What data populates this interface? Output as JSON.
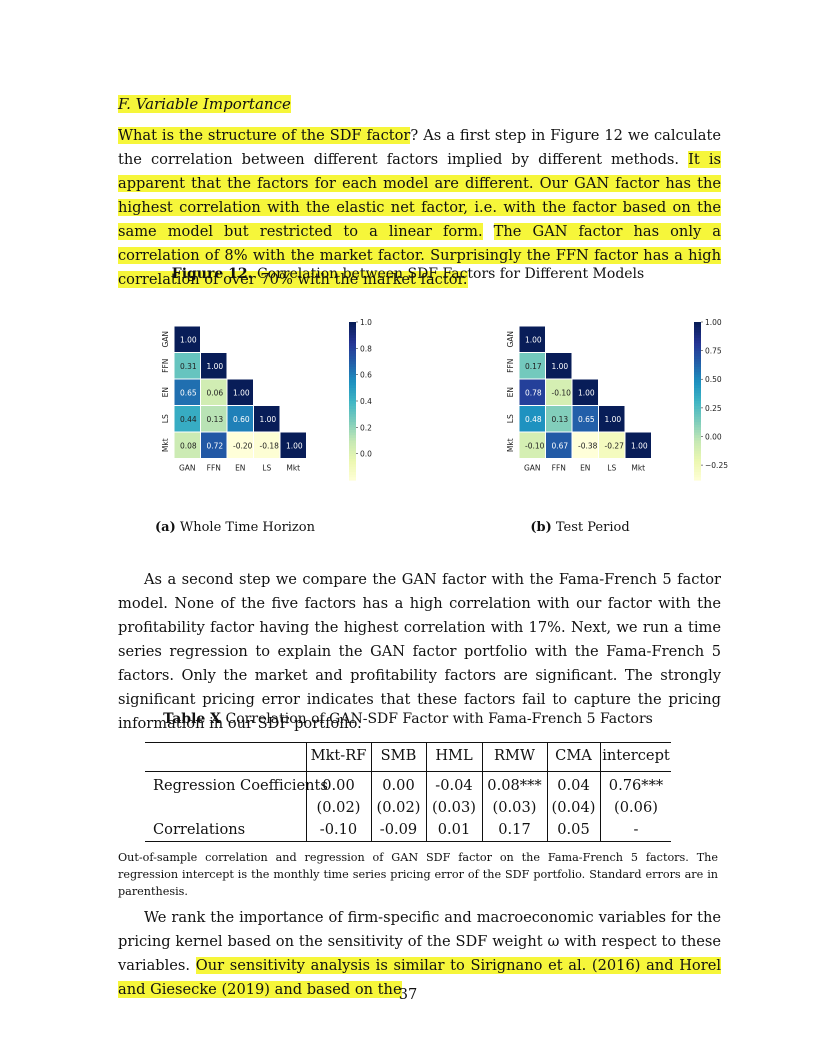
{
  "section": {
    "title": "F.   Variable Importance"
  },
  "para1": {
    "s1_hl": "What is the structure of the SDF factor",
    "s1_rest": "? As a first step in Figure 12 we calculate the correlation between different factors implied by different methods. ",
    "s2_hl": "It is apparent that the factors for each model are different. Our GAN factor has the highest correlation with the elastic net factor, i.e. with the factor based on the same model but restricted to a linear form.",
    "s3_hl": "The GAN factor has only a correlation of 8% with the market factor. Surprisingly the FFN factor has a high correlation of over 70% with the market factor."
  },
  "figure": {
    "label": "Figure 12.",
    "caption": "Correlation between SDF Factors for Different Models",
    "panel_a_label": "(a)",
    "panel_a_caption": "Whole Time Horizon",
    "panel_b_label": "(b)",
    "panel_b_caption": "Test Period"
  },
  "chart_data": [
    {
      "type": "heatmap",
      "title": "Whole Time Horizon",
      "labels": [
        "GAN",
        "FFN",
        "EN",
        "LS",
        "Mkt"
      ],
      "matrix": [
        [
          "1.00"
        ],
        [
          "0.31",
          "1.00"
        ],
        [
          "0.65",
          "0.06",
          "1.00"
        ],
        [
          "0.44",
          "0.13",
          "0.60",
          "1.00"
        ],
        [
          "0.08",
          "0.72",
          "-0.20",
          "-0.18",
          "1.00"
        ]
      ],
      "vmin": -0.2,
      "vmax": 1.0,
      "colorbar_ticks": [
        "0.0",
        "0.2",
        "0.4",
        "0.6",
        "0.8",
        "1.0"
      ],
      "colorbar_values": [
        0.0,
        0.2,
        0.4,
        0.6,
        0.8,
        1.0
      ]
    },
    {
      "type": "heatmap",
      "title": "Test Period",
      "labels": [
        "GAN",
        "FFN",
        "EN",
        "LS",
        "Mkt"
      ],
      "matrix": [
        [
          "1.00"
        ],
        [
          "0.17",
          "1.00"
        ],
        [
          "0.78",
          "-0.10",
          "1.00"
        ],
        [
          "0.48",
          "0.13",
          "0.65",
          "1.00"
        ],
        [
          "-0.10",
          "0.67",
          "-0.38",
          "-0.27",
          "1.00"
        ]
      ],
      "vmin": -0.38,
      "vmax": 1.0,
      "colorbar_ticks": [
        "−0.25",
        "0.00",
        "0.25",
        "0.50",
        "0.75",
        "1.00"
      ],
      "colorbar_values": [
        -0.25,
        0.0,
        0.25,
        0.5,
        0.75,
        1.0
      ]
    }
  ],
  "para2": "As a second step we compare the GAN factor with the Fama-French 5 factor model. None of the five factors has a high correlation with our factor with the profitability factor having the highest correlation with 17%. Next, we run a time series regression to explain the GAN factor portfolio with the Fama-French 5 factors. Only the market and profitability factors are significant. The strongly significant pricing error indicates that these factors fail to capture the pricing information in our SDF portfolio.",
  "table": {
    "label": "Table X",
    "caption": "Correlation of GAN-SDF Factor with Fama-French 5 Factors",
    "headers": [
      "Mkt-RF",
      "SMB",
      "HML",
      "RMW",
      "CMA",
      "intercept"
    ],
    "row1_label": "Regression Coefficients",
    "row1": [
      "0.00",
      "0.00",
      "-0.04",
      "0.08***",
      "0.04",
      "0.76***"
    ],
    "row2": [
      "(0.02)",
      "(0.02)",
      "(0.03)",
      "(0.03)",
      "(0.04)",
      "(0.06)"
    ],
    "row3_label": "Correlations",
    "row3": [
      "-0.10",
      "-0.09",
      "0.01",
      "0.17",
      "0.05",
      "-"
    ],
    "note": "Out-of-sample correlation and regression of GAN SDF factor on the Fama-French 5 factors. The regression intercept is the monthly time series pricing error of the SDF portfolio. Standard errors are in parenthesis."
  },
  "para3": {
    "text": "We rank the importance of firm-specific and macroeconomic variables for the pricing kernel based on the sensitivity of the SDF weight ω with respect to these variables. ",
    "hl": "Our sensitivity analysis is similar to Sirignano et al. (2016) and Horel and Giesecke (2019) and based on the"
  },
  "page_number": "37"
}
